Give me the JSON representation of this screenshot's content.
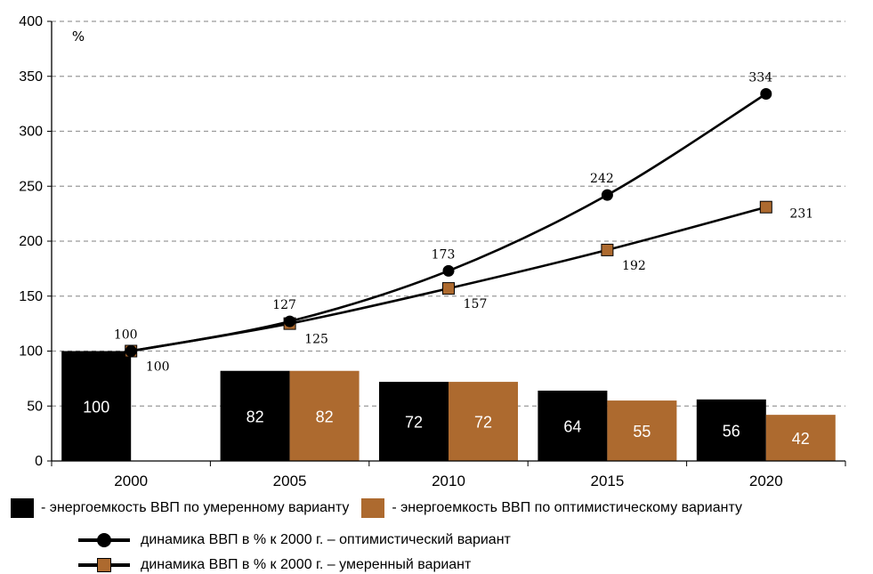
{
  "chart_data": {
    "type": "bar+line",
    "unit_label": "%",
    "categories": [
      "2000",
      "2005",
      "2010",
      "2015",
      "2020"
    ],
    "ylim": [
      0,
      400
    ],
    "yticks": [
      "0",
      "50",
      "100",
      "150",
      "200",
      "250",
      "300",
      "350",
      "400"
    ],
    "grid": true,
    "bar_series": [
      {
        "name": "- энергоемкость ВВП по умеренному варианту",
        "color": "#000000",
        "values": [
          100,
          82,
          72,
          64,
          56
        ]
      },
      {
        "name": "- энергоемкость ВВП по оптимистическому варианту",
        "color": "#ad6a2f",
        "values": [
          null,
          82,
          72,
          55,
          42
        ]
      }
    ],
    "line_series": [
      {
        "name": "динамика ВВП в % к 2000 г. – оптимистический вариант",
        "marker": "circle",
        "values": [
          100,
          127,
          173,
          242,
          334
        ]
      },
      {
        "name": "динамика ВВП в % к 2000 г. – умеренный вариант",
        "marker": "square",
        "values": [
          100,
          125,
          157,
          192,
          231
        ]
      }
    ]
  }
}
